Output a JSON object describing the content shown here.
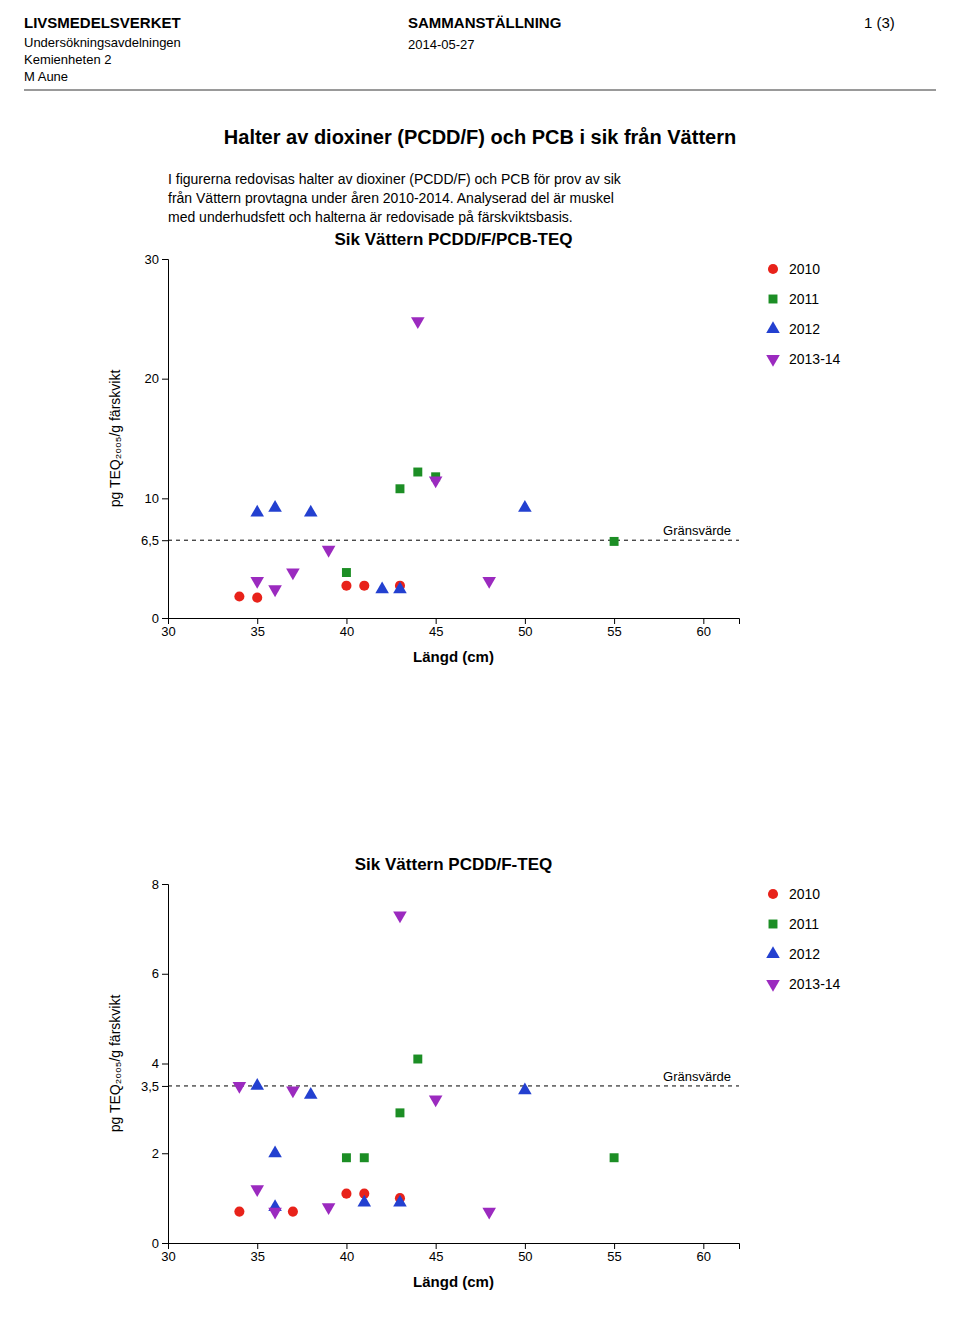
{
  "header_left": [
    "LIVSMEDELSVERKET",
    "Undersökningsavdelningen",
    "Kemienheten 2",
    "M Aune"
  ],
  "header_center": "SAMMANSTÄLLNING",
  "header_page": "1 (3)",
  "header_date": "2014-05-27",
  "title": "Halter av dioxiner (PCDD/F) och PCB i sik från Vättern",
  "body": [
    "I figurerna redovisas halter av dioxiner (PCDD/F) och PCB för prov av sik",
    "från Vättern provtagna under åren 2010-2014. Analyserad del är muskel",
    "med underhudsfett och halterna är redovisade på färskviktsbasis."
  ],
  "chart_data": [
    {
      "type": "scatter",
      "title": "Sik Vättern PCDD/F/PCB-TEQ",
      "x_label": "Längd (cm)",
      "y_label": "pg TEQ₂₀₀₅/g färskvikt",
      "xlim": [
        30,
        62
      ],
      "ylim": [
        0,
        30
      ],
      "xticks": [
        30,
        35,
        40,
        45,
        50,
        55,
        60
      ],
      "yticks": [
        0,
        {
          "value": 6.5,
          "label": "6,5"
        },
        10,
        20,
        30
      ],
      "legend": "right",
      "annotations": [
        {
          "text": "Gränsvärde",
          "y": 6.5,
          "line_style": "dashed"
        }
      ],
      "series": [
        {
          "name": "2010",
          "color": "#e8221a",
          "marker": "circle",
          "x": [
            34,
            35,
            40,
            41,
            43
          ],
          "values": [
            1.8,
            1.7,
            2.7,
            2.7,
            2.7
          ]
        },
        {
          "name": "2011",
          "color": "#1c8e25",
          "marker": "square",
          "x": [
            40,
            43,
            44,
            45,
            55
          ],
          "values": [
            3.8,
            10.8,
            12.2,
            11.8,
            6.4
          ]
        },
        {
          "name": "2012",
          "color": "#2340d0",
          "marker": "triangle-up",
          "x": [
            35,
            36,
            38,
            42,
            43,
            50
          ],
          "values": [
            8.8,
            9.2,
            8.8,
            2.4,
            2.4,
            9.2
          ]
        },
        {
          "name": "2013-14",
          "color": "#9b2abf",
          "marker": "triangle-down",
          "x": [
            35,
            36,
            37,
            39,
            44,
            45,
            48
          ],
          "values": [
            3.1,
            2.4,
            3.8,
            5.7,
            24.8,
            11.5,
            3.1
          ]
        }
      ]
    },
    {
      "type": "scatter",
      "title": "Sik Vättern PCDD/F-TEQ",
      "x_label": "Längd (cm)",
      "y_label": "pg TEQ₂₀₀₅/g färskvikt",
      "xlim": [
        30,
        62
      ],
      "ylim": [
        0,
        8
      ],
      "xticks": [
        30,
        35,
        40,
        45,
        50,
        55,
        60
      ],
      "yticks": [
        0,
        2,
        {
          "value": 3.5,
          "label": "3,5"
        },
        4,
        6,
        8
      ],
      "legend": "right",
      "annotations": [
        {
          "text": "Gränsvärde",
          "y": 3.5,
          "line_style": "dashed"
        }
      ],
      "series": [
        {
          "name": "2010",
          "color": "#e8221a",
          "marker": "circle",
          "x": [
            34,
            37,
            40,
            41,
            43
          ],
          "values": [
            0.7,
            0.7,
            1.1,
            1.1,
            1.0
          ]
        },
        {
          "name": "2011",
          "color": "#1c8e25",
          "marker": "square",
          "x": [
            40,
            41,
            43,
            44,
            55
          ],
          "values": [
            1.9,
            1.9,
            2.9,
            4.1,
            1.9
          ]
        },
        {
          "name": "2012",
          "color": "#2340d0",
          "marker": "triangle-up",
          "x": [
            35,
            36,
            36,
            38,
            41,
            43,
            50
          ],
          "values": [
            3.5,
            2.0,
            0.8,
            3.3,
            0.9,
            0.9,
            3.4
          ]
        },
        {
          "name": "2013-14",
          "color": "#9b2abf",
          "marker": "triangle-down",
          "x": [
            34,
            35,
            36,
            37,
            39,
            43,
            45,
            48
          ],
          "values": [
            3.5,
            1.2,
            0.7,
            3.4,
            0.8,
            7.3,
            3.2,
            0.7
          ]
        }
      ]
    }
  ]
}
